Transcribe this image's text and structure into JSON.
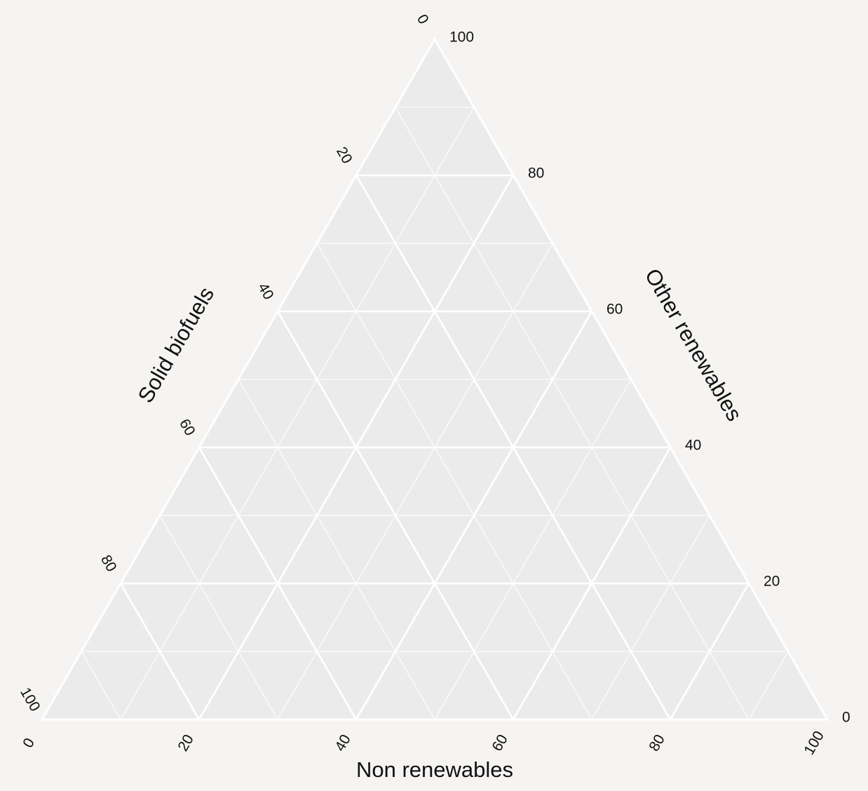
{
  "chart_data": {
    "type": "ternary",
    "title": "",
    "axes": {
      "bottom": {
        "label": "Non renewables",
        "ticks": [
          "0",
          "20",
          "40",
          "60",
          "80",
          "100"
        ]
      },
      "left": {
        "label": "Solid biofuels",
        "ticks": [
          "0",
          "20",
          "40",
          "60",
          "80",
          "100"
        ]
      },
      "right": {
        "label": "Other renewables",
        "ticks": [
          "0",
          "20",
          "40",
          "60",
          "80",
          "100"
        ]
      }
    },
    "range": [
      0,
      100
    ],
    "major_step": 20,
    "minor_step": 10,
    "grid": true,
    "series": []
  },
  "colors": {
    "background": "#f5f4f2",
    "plot_fill": "#ebebeb",
    "grid_major": "#ffffff",
    "grid_minor": "#ffffff",
    "text": "#111111"
  }
}
